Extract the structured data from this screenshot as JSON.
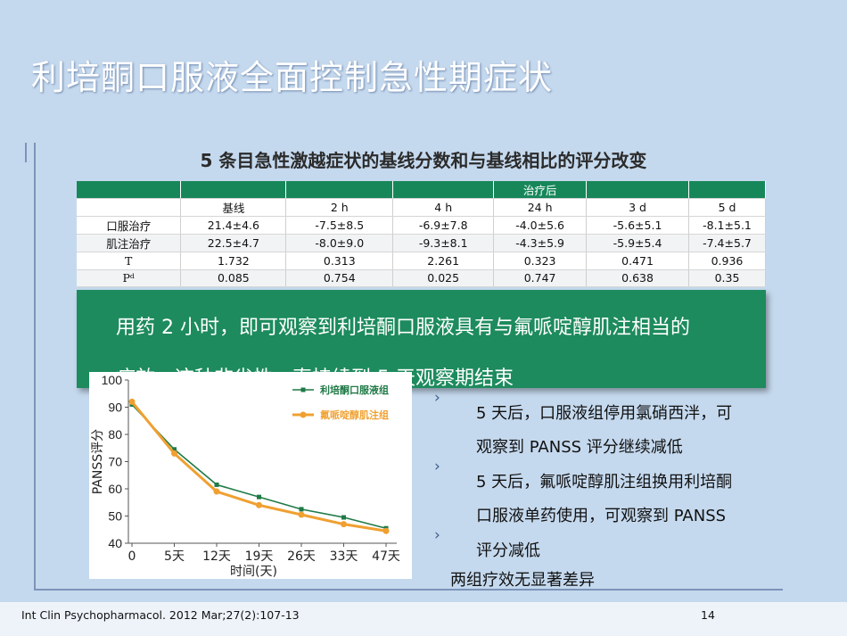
{
  "slide": {
    "title": "利培酮口服液全面控制急性期症状",
    "subtitle": "5 条目急性激越症状的基线分数和与基线相比的评分改变",
    "table": {
      "header_row": [
        "",
        "",
        "",
        "",
        "治疗后",
        "",
        ""
      ],
      "columns": [
        "",
        "基线",
        "2 h",
        "4 h",
        "24 h",
        "3 d",
        "5 d"
      ],
      "rows": [
        [
          "口服治疗",
          "21.4±4.6",
          "-7.5±8.5",
          "-6.9±7.8",
          "-4.0±5.6",
          "-5.6±5.1",
          "-8.1±5.1"
        ],
        [
          "肌注治疗",
          "22.5±4.7",
          "-8.0±9.0",
          "-9.3±8.1",
          "-4.3±5.9",
          "-5.9±5.4",
          "-7.4±5.7"
        ],
        [
          "T",
          "1.732",
          "0.313",
          "2.261",
          "0.323",
          "0.471",
          "0.936"
        ],
        [
          "Pᵈ",
          "0.085",
          "0.754",
          "0.025",
          "0.747",
          "0.638",
          "0.35"
        ]
      ]
    },
    "callout": {
      "line1": "用药 2 小时，即可观察到利培酮口服液具有与氟哌啶醇肌注相当的",
      "line2": "疗效，这种非劣性一直持续到 5 天观察期结束"
    },
    "bullets": [
      {
        "lines": [
          "5 天后，口服液组停用氯硝西泮，可",
          "观察到  PANSS 评分继续减低"
        ]
      },
      {
        "lines": [
          "5 天后，氟哌啶醇肌注组换用利培酮",
          "口服液单药使用，可观察到 PANSS",
          "评分减低"
        ]
      }
    ],
    "conclusion": "两组疗效无显著差异",
    "footer": {
      "citation": "Int Clin Psychopharmacol. 2012 Mar;27(2):107-13",
      "page_number": "14"
    },
    "colors": {
      "background": "#c5d9ee",
      "table_header": "#17875a",
      "callout": "#1d8b5d",
      "series_oral": "#1f7a46",
      "series_im": "#f0a030"
    }
  },
  "chart_data": {
    "type": "line",
    "ylabel": "PANSS评分",
    "xlabel": "时间(天)",
    "x": [
      "0",
      "5天",
      "12天",
      "19天",
      "26天",
      "33天",
      "47天"
    ],
    "ylim": [
      40,
      100
    ],
    "yticks": [
      40,
      50,
      60,
      70,
      80,
      90,
      100
    ],
    "legend_position": "top-right",
    "series": [
      {
        "name": "利培酮口服液组",
        "color": "#1f7a46",
        "values": [
          91,
          74.5,
          61.5,
          57,
          52.5,
          49.5,
          45.5
        ]
      },
      {
        "name": "氟哌啶醇肌注组",
        "color": "#f0a030",
        "values": [
          92,
          73,
          59,
          54,
          50.5,
          47,
          44.5
        ]
      }
    ]
  }
}
